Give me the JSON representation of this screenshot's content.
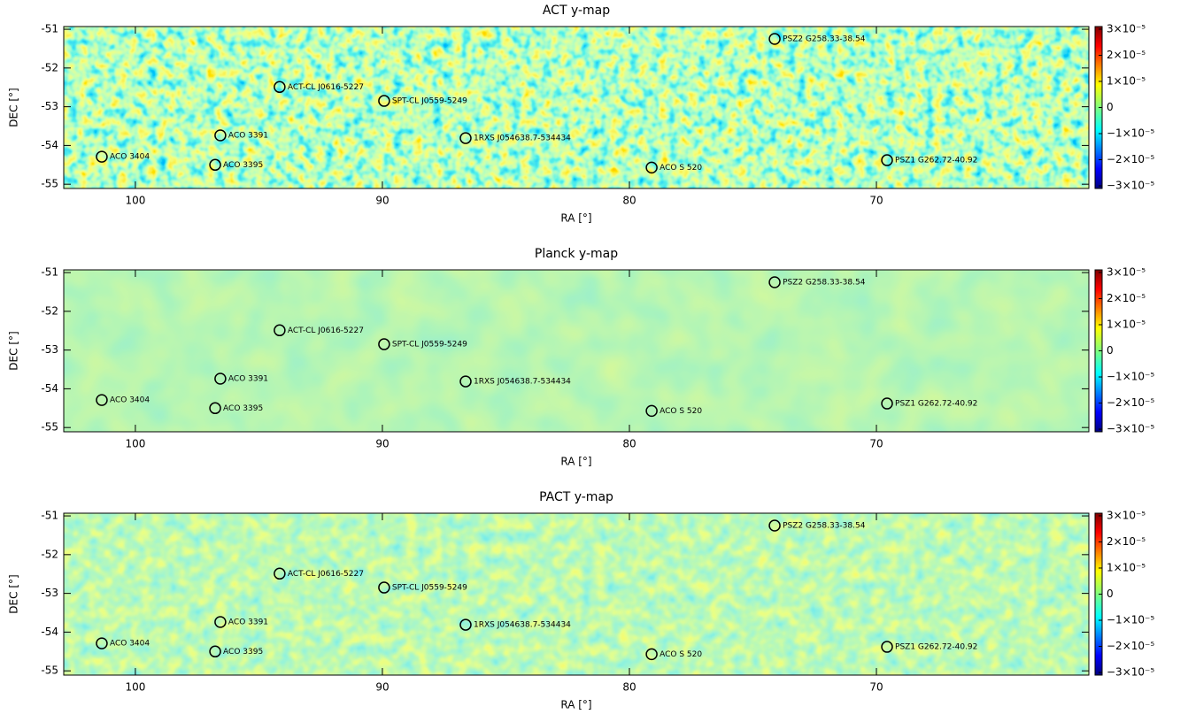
{
  "chart_data": [
    {
      "type": "map",
      "title": "ACT y-map",
      "xlabel": "RA [°]",
      "ylabel": "DEC [°]",
      "colormap": "jet",
      "xlim": [
        102.9,
        61.4
      ],
      "xticks": [
        100,
        90,
        80,
        70
      ],
      "ylim": [
        -55.11,
        -50.93
      ],
      "yticks": [
        -55,
        -54,
        -53,
        -52,
        -51
      ],
      "clim": [
        -3.1e-05,
        3.1e-05
      ],
      "cticks": [
        {
          "value": 3e-05,
          "label": "3×10⁻⁵"
        },
        {
          "value": 2e-05,
          "label": "2×10⁻⁵"
        },
        {
          "value": 1e-05,
          "label": "1×10⁻⁵"
        },
        0,
        {
          "value": -1e-05,
          "label": "−1×10⁻⁵"
        },
        {
          "value": -2e-05,
          "label": "−2×10⁻⁵"
        },
        {
          "value": -3e-05,
          "label": "−3×10⁻⁵"
        }
      ],
      "clusters": [
        {
          "name": "ACO 3404",
          "ra": 101.36,
          "dec": -54.29
        },
        {
          "name": "ACO 3391",
          "ra": 96.56,
          "dec": -53.74
        },
        {
          "name": "ACO 3395",
          "ra": 96.77,
          "dec": -54.5
        },
        {
          "name": "ACT-CL J0616-5227",
          "ra": 94.16,
          "dec": -52.49
        },
        {
          "name": "SPT-CL J0559-5249",
          "ra": 89.93,
          "dec": -52.85
        },
        {
          "name": "1RXS J054638.7-534434",
          "ra": 86.63,
          "dec": -53.81
        },
        {
          "name": "ACO S 520",
          "ra": 79.1,
          "dec": -54.57
        },
        {
          "name": "PSZ2 G258.33-38.54",
          "ra": 74.12,
          "dec": -51.25
        },
        {
          "name": "PSZ1 G262.72-40.92",
          "ra": 69.57,
          "dec": -54.38
        }
      ]
    },
    {
      "type": "map",
      "title": "Planck y-map",
      "xlabel": "RA [°]",
      "ylabel": "DEC [°]",
      "colormap": "jet",
      "xlim": [
        102.9,
        61.4
      ],
      "xticks": [
        100,
        90,
        80,
        70
      ],
      "ylim": [
        -55.11,
        -50.93
      ],
      "yticks": [
        -55,
        -54,
        -53,
        -52,
        -51
      ],
      "clim": [
        -3.1e-05,
        3.1e-05
      ],
      "cticks": [
        {
          "value": 3e-05,
          "label": "3×10⁻⁵"
        },
        {
          "value": 2e-05,
          "label": "2×10⁻⁵"
        },
        {
          "value": 1e-05,
          "label": "1×10⁻⁵"
        },
        0,
        {
          "value": -1e-05,
          "label": "−1×10⁻⁵"
        },
        {
          "value": -2e-05,
          "label": "−2×10⁻⁵"
        },
        {
          "value": -3e-05,
          "label": "−3×10⁻⁵"
        }
      ],
      "clusters": [
        {
          "name": "ACO 3404",
          "ra": 101.36,
          "dec": -54.29
        },
        {
          "name": "ACO 3391",
          "ra": 96.56,
          "dec": -53.74
        },
        {
          "name": "ACO 3395",
          "ra": 96.77,
          "dec": -54.5
        },
        {
          "name": "ACT-CL J0616-5227",
          "ra": 94.16,
          "dec": -52.49
        },
        {
          "name": "SPT-CL J0559-5249",
          "ra": 89.93,
          "dec": -52.85
        },
        {
          "name": "1RXS J054638.7-534434",
          "ra": 86.63,
          "dec": -53.81
        },
        {
          "name": "ACO S 520",
          "ra": 79.1,
          "dec": -54.57
        },
        {
          "name": "PSZ2 G258.33-38.54",
          "ra": 74.12,
          "dec": -51.25
        },
        {
          "name": "PSZ1 G262.72-40.92",
          "ra": 69.57,
          "dec": -54.38
        }
      ]
    },
    {
      "type": "map",
      "title": "PACT y-map",
      "xlabel": "RA [°]",
      "ylabel": "DEC [°]",
      "colormap": "jet",
      "xlim": [
        102.9,
        61.4
      ],
      "xticks": [
        100,
        90,
        80,
        70
      ],
      "ylim": [
        -55.11,
        -50.93
      ],
      "yticks": [
        -55,
        -54,
        -53,
        -52,
        -51
      ],
      "clim": [
        -3.1e-05,
        3.1e-05
      ],
      "cticks": [
        {
          "value": 3e-05,
          "label": "3×10⁻⁵"
        },
        {
          "value": 2e-05,
          "label": "2×10⁻⁵"
        },
        {
          "value": 1e-05,
          "label": "1×10⁻⁵"
        },
        0,
        {
          "value": -1e-05,
          "label": "−1×10⁻⁵"
        },
        {
          "value": -2e-05,
          "label": "−2×10⁻⁵"
        },
        {
          "value": -3e-05,
          "label": "−3×10⁻⁵"
        }
      ],
      "clusters": [
        {
          "name": "ACO 3404",
          "ra": 101.36,
          "dec": -54.29
        },
        {
          "name": "ACO 3391",
          "ra": 96.56,
          "dec": -53.74
        },
        {
          "name": "ACO 3395",
          "ra": 96.77,
          "dec": -54.5
        },
        {
          "name": "ACT-CL J0616-5227",
          "ra": 94.16,
          "dec": -52.49
        },
        {
          "name": "SPT-CL J0559-5249",
          "ra": 89.93,
          "dec": -52.85
        },
        {
          "name": "1RXS J054638.7-534434",
          "ra": 86.63,
          "dec": -53.81
        },
        {
          "name": "ACO S 520",
          "ra": 79.1,
          "dec": -54.57
        },
        {
          "name": "PSZ2 G258.33-38.54",
          "ra": 74.12,
          "dec": -51.25
        },
        {
          "name": "PSZ1 G262.72-40.92",
          "ra": 69.57,
          "dec": -54.38
        }
      ]
    }
  ]
}
